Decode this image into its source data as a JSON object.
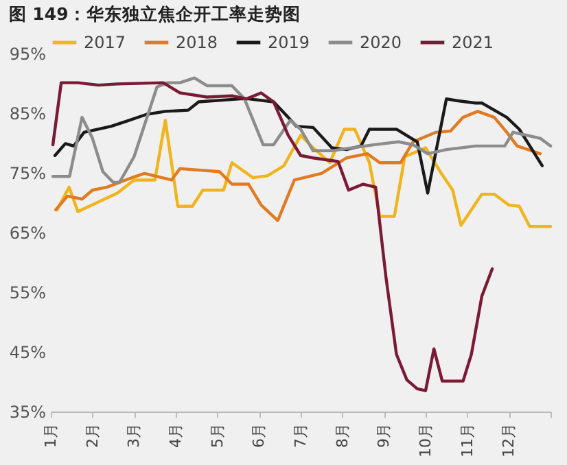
{
  "chart_data": {
    "type": "line",
    "title": "图 149：华东独立焦企开工率走势图",
    "xlim": [
      1,
      13
    ],
    "xticks": [
      {
        "value": 1,
        "label": "1月"
      },
      {
        "value": 2,
        "label": "2月"
      },
      {
        "value": 3,
        "label": "3月"
      },
      {
        "value": 4,
        "label": "4月"
      },
      {
        "value": 5,
        "label": "5月"
      },
      {
        "value": 6,
        "label": "6月"
      },
      {
        "value": 7,
        "label": "7月"
      },
      {
        "value": 8,
        "label": "8月"
      },
      {
        "value": 9,
        "label": "9月"
      },
      {
        "value": 10,
        "label": "10月"
      },
      {
        "value": 11,
        "label": "11月"
      },
      {
        "value": 12,
        "label": "12月"
      },
      {
        "value": 13,
        "label": null
      }
    ],
    "ylim": [
      35,
      95
    ],
    "yticks": [
      {
        "value": 35,
        "label": "35%"
      },
      {
        "value": 45,
        "label": "45%"
      },
      {
        "value": 55,
        "label": "55%"
      },
      {
        "value": 65,
        "label": "65%"
      },
      {
        "value": 75,
        "label": "75%"
      },
      {
        "value": 85,
        "label": "85%"
      },
      {
        "value": 95,
        "label": "95%"
      }
    ],
    "grid": false,
    "legend": "top",
    "marker": "none",
    "line_style": "solid",
    "series": [
      {
        "name": "2017",
        "color": "#f0b41c",
        "x": [
          1.15,
          1.44,
          1.65,
          2.6,
          3,
          3.5,
          3.75,
          4.05,
          4.4,
          4.65,
          5.15,
          5.35,
          5.85,
          6.2,
          6.6,
          7,
          7.3,
          7.7,
          8.05,
          8.3,
          8.65,
          8.9,
          9.25,
          9.5,
          10,
          10.35,
          10.65,
          10.85,
          11.35,
          11.65,
          12,
          12.25,
          12.5,
          13
        ],
        "values": [
          68.8,
          72.6,
          68.5,
          71.6,
          73.8,
          73.8,
          83.8,
          69.4,
          69.4,
          72.1,
          72.1,
          76.7,
          74.2,
          74.5,
          76.2,
          81.3,
          79.2,
          76.7,
          82.3,
          82.3,
          76.7,
          67.7,
          67.7,
          77.7,
          79.2,
          75.2,
          72.1,
          66.2,
          71.4,
          71.4,
          69.6,
          69.4,
          66,
          66
        ]
      },
      {
        "name": "2018",
        "color": "#e07b22",
        "x": [
          1.12,
          1.4,
          1.75,
          2,
          2.35,
          2.95,
          3.25,
          3.9,
          4.1,
          5.05,
          5.35,
          5.75,
          6.05,
          6.45,
          6.85,
          7.5,
          7.8,
          8.1,
          8.6,
          8.9,
          9.4,
          9.7,
          10.25,
          10.6,
          10.9,
          11.25,
          11.65,
          11.95,
          12.2,
          12.75
        ],
        "values": [
          68.8,
          71.1,
          70.6,
          72.1,
          72.6,
          74.2,
          74.9,
          73.8,
          75.7,
          75.2,
          73.1,
          73.1,
          69.6,
          67,
          73.8,
          74.9,
          76.2,
          77.5,
          78.2,
          76.7,
          76.7,
          80.2,
          81.8,
          82,
          84.3,
          85.3,
          84.3,
          81.8,
          79.5,
          78.2
        ]
      },
      {
        "name": "2019",
        "color": "#1a1a1a",
        "x": [
          1.1,
          1.35,
          1.55,
          1.8,
          2.45,
          2.8,
          3.3,
          3.75,
          4.3,
          4.55,
          5.55,
          5.75,
          6.35,
          6.7,
          6.9,
          7.3,
          7.75,
          8.1,
          8.45,
          8.65,
          9.3,
          9.8,
          10.05,
          10.5,
          10.75,
          11.2,
          11.35,
          11.95,
          12.25,
          12.8
        ],
        "values": [
          77.9,
          79.9,
          79.5,
          81.8,
          82.8,
          83.6,
          84.8,
          85.3,
          85.5,
          86.9,
          87.4,
          87.4,
          86.9,
          84.3,
          82.8,
          82.6,
          79.2,
          78.9,
          79.5,
          82.3,
          82.3,
          80.2,
          71.6,
          87.4,
          87.1,
          86.7,
          86.7,
          84.3,
          82.3,
          76.2
        ]
      },
      {
        "name": "2020",
        "color": "#8c8c8c",
        "x": [
          1.05,
          1.45,
          1.75,
          2,
          2.25,
          2.5,
          2.65,
          3,
          3.55,
          3.8,
          4.1,
          4.45,
          4.75,
          5.35,
          5.65,
          6.1,
          6.35,
          6.75,
          7,
          7.3,
          7.75,
          8.75,
          9.35,
          9.7,
          10.05,
          10.5,
          11.2,
          11.9,
          12.1,
          12.75,
          13
        ],
        "values": [
          74.4,
          74.4,
          84.3,
          80.8,
          75.2,
          73.4,
          73.4,
          77.7,
          89.4,
          90.1,
          90.1,
          90.9,
          89.6,
          89.6,
          87.4,
          79.7,
          79.7,
          83.8,
          82.3,
          78.7,
          78.7,
          79.7,
          80.2,
          79.7,
          78.2,
          78.9,
          79.5,
          79.5,
          81.8,
          80.8,
          79.5
        ]
      },
      {
        "name": "2021",
        "color": "#7a1a35",
        "x": [
          1.05,
          1.25,
          1.65,
          2.15,
          2.6,
          3.7,
          4.1,
          4.75,
          5.35,
          5.7,
          6.05,
          6.35,
          6.7,
          7,
          7.3,
          7.9,
          8.15,
          8.5,
          8.8,
          9.05,
          9.3,
          9.55,
          9.8,
          10,
          10.2,
          10.4,
          10.9,
          11.1,
          11.35,
          11.6
        ],
        "values": [
          79.7,
          90.1,
          90.1,
          89.7,
          89.9,
          90.1,
          88.4,
          87.7,
          87.9,
          87.4,
          88.4,
          86.9,
          81.3,
          77.9,
          77.5,
          76.9,
          72.1,
          73.1,
          72.6,
          57.4,
          44.6,
          40.3,
          38.8,
          38.5,
          45.5,
          40.1,
          40.1,
          44.6,
          54.3,
          58.9
        ]
      }
    ]
  }
}
